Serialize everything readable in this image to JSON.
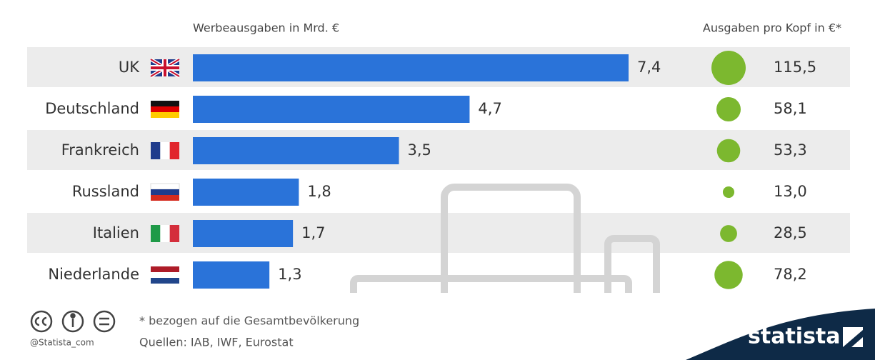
{
  "chart_data": {
    "type": "bar",
    "orientation": "horizontal",
    "categories": [
      "UK",
      "Deutschland",
      "Frankreich",
      "Russland",
      "Italien",
      "Niederlande"
    ],
    "series": [
      {
        "name": "Werbeausgaben in Mrd. €",
        "marker": "bar",
        "color": "#2a73d9",
        "values": [
          7.4,
          4.7,
          3.5,
          1.8,
          1.7,
          1.3
        ],
        "value_labels": [
          "7,4",
          "4,7",
          "3,5",
          "1,8",
          "1,7",
          "1,3"
        ]
      },
      {
        "name": "Ausgaben pro Kopf in €*",
        "marker": "circle",
        "color": "#7cb82f",
        "values": [
          115.5,
          58.1,
          53.3,
          13.0,
          28.5,
          78.2
        ],
        "value_labels": [
          "115,5",
          "58,1",
          "53,3",
          "13,0",
          "28,5",
          "78,2"
        ]
      }
    ]
  },
  "footer": {
    "note": "* bezogen auf die Gesamtbevölkerung",
    "source": "Quellen: IAB, IWF, Eurostat",
    "handle": "@Statista_com",
    "brand": "statista"
  }
}
